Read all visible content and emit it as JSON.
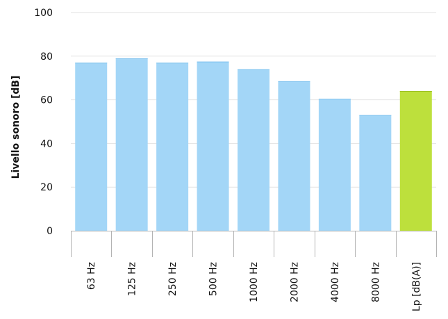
{
  "chart_data": {
    "type": "bar",
    "ylabel": "Livello sonoro [dB]",
    "xlabel": "",
    "title": "",
    "ylim": [
      0,
      100
    ],
    "y_ticks": [
      0,
      20,
      40,
      60,
      80,
      100
    ],
    "grid": true,
    "categories": [
      "63 Hz",
      "125 Hz",
      "250 Hz",
      "500 Hz",
      "1000 Hz",
      "2000 Hz",
      "4000 Hz",
      "8000 Hz",
      "Lp [dB(A)]"
    ],
    "values": [
      77,
      79,
      77,
      77.5,
      74,
      68.5,
      60.5,
      53,
      64
    ],
    "bar_colors": [
      "#a3d6f7",
      "#a3d6f7",
      "#a3d6f7",
      "#a3d6f7",
      "#a3d6f7",
      "#a3d6f7",
      "#a3d6f7",
      "#a3d6f7",
      "#bde03c"
    ],
    "grid_color": "#e2e2e2",
    "axis_color": "#b3b3b3"
  }
}
